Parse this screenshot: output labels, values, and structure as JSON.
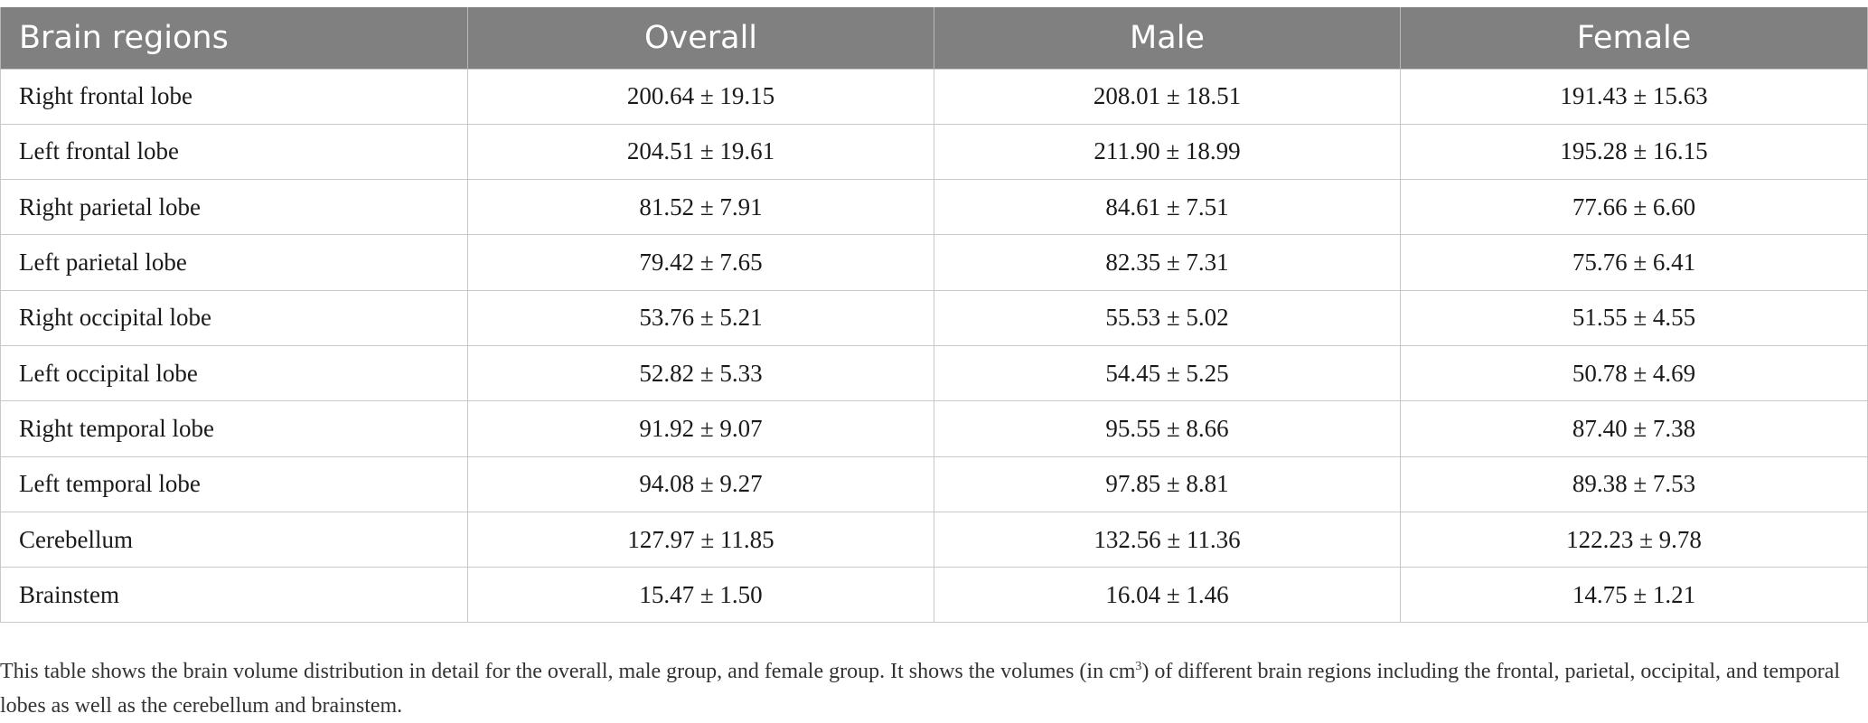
{
  "table": {
    "headers": [
      "Brain regions",
      "Overall",
      "Male",
      "Female"
    ],
    "rows": [
      [
        "Right frontal lobe",
        "200.64 ± 19.15",
        "208.01 ± 18.51",
        "191.43 ± 15.63"
      ],
      [
        "Left frontal lobe",
        "204.51 ± 19.61",
        "211.90 ± 18.99",
        "195.28 ± 16.15"
      ],
      [
        "Right parietal lobe",
        "81.52 ± 7.91",
        "84.61 ± 7.51",
        "77.66 ± 6.60"
      ],
      [
        "Left parietal lobe",
        "79.42 ± 7.65",
        "82.35 ± 7.31",
        "75.76 ± 6.41"
      ],
      [
        "Right occipital lobe",
        "53.76 ± 5.21",
        "55.53 ± 5.02",
        "51.55 ± 4.55"
      ],
      [
        "Left occipital lobe",
        "52.82 ± 5.33",
        "54.45 ± 5.25",
        "50.78 ± 4.69"
      ],
      [
        "Right temporal lobe",
        "91.92 ± 9.07",
        "95.55 ± 8.66",
        "87.40 ± 7.38"
      ],
      [
        "Left temporal lobe",
        "94.08 ± 9.27",
        "97.85 ± 8.81",
        "89.38 ± 7.53"
      ],
      [
        "Cerebellum",
        "127.97 ± 11.85",
        "132.56 ± 11.36",
        "122.23 ± 9.78"
      ],
      [
        "Brainstem",
        "15.47 ± 1.50",
        "16.04 ± 1.46",
        "14.75 ± 1.21"
      ]
    ]
  },
  "footnote": {
    "before": "This table shows the brain volume distribution in detail for the overall, male group, and female group. It shows the volumes (in cm",
    "sup": "3",
    "after": ") of different brain regions including the frontal, parietal, occipital, and temporal lobes as well as the cerebellum and brainstem."
  }
}
